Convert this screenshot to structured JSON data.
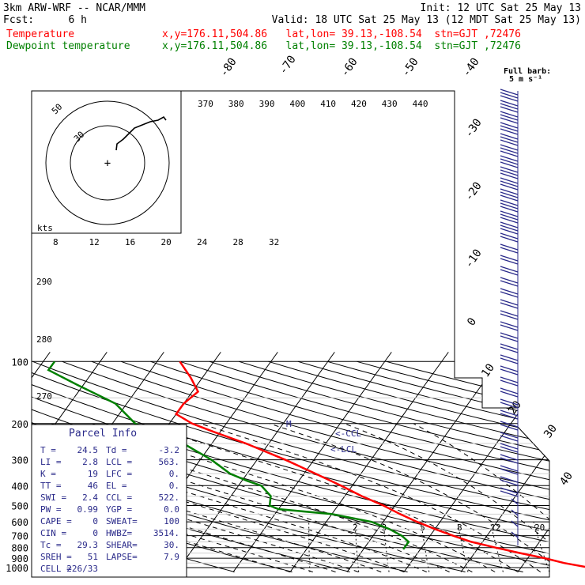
{
  "header": {
    "model": "3km ARW-WRF -- NCAR/MMM",
    "init": "Init: 12 UTC Sat 25 May 13",
    "fcst_label": "Fcst:",
    "fcst_value": "6 h",
    "valid": "Valid: 18 UTC Sat 25 May 13 (12 MDT Sat 25 May 13)",
    "temperature_label": "Temperature",
    "dewpoint_label": "Dewpoint temperature",
    "location_info": "x,y=176.11,504.86   lat,lon= 39.13,-108.54  stn=GJT ,72476",
    "temperature_color": "#ff0000",
    "dewpoint_color": "#008000"
  },
  "chart_data": {
    "type": "skew-t",
    "pressure_levels": [
      100,
      200,
      300,
      400,
      500,
      600,
      700,
      800,
      900,
      1000
    ],
    "isotherm_labels": [
      "-80",
      "-70",
      "-60",
      "-50",
      "-40",
      "-30",
      "-20",
      "-10",
      "0",
      "10",
      "20",
      "30",
      "40"
    ],
    "theta_labels_top": [
      "370",
      "380",
      "390",
      "400",
      "410",
      "420",
      "430",
      "440"
    ],
    "theta_labels_left": [
      "290",
      "280",
      "270"
    ],
    "hodograph": {
      "units_label": "kts",
      "ring_labels": [
        "50",
        "30"
      ],
      "axis_labels": [
        "8",
        "12",
        "16",
        "20",
        "24",
        "28",
        "32"
      ]
    },
    "mixing_ratio_labels": [
      "2",
      "3",
      "5",
      "8",
      "12",
      "20"
    ],
    "wind_barb_key": {
      "title": "Full barb:",
      "value": "5 m s⁻¹"
    },
    "markers": {
      "ccl": "<-CCL",
      "lcl": "<-LCL",
      "marker": "M"
    },
    "temperature_profile": [
      [
        1000,
        32
      ],
      [
        950,
        27
      ],
      [
        900,
        23
      ],
      [
        850,
        18
      ],
      [
        800,
        13
      ],
      [
        750,
        8
      ],
      [
        700,
        4
      ],
      [
        650,
        0
      ],
      [
        600,
        -4
      ],
      [
        550,
        -8
      ],
      [
        500,
        -12
      ],
      [
        450,
        -17
      ],
      [
        400,
        -22
      ],
      [
        350,
        -28
      ],
      [
        300,
        -35
      ],
      [
        250,
        -44
      ],
      [
        220,
        -51
      ],
      [
        200,
        -56
      ],
      [
        180,
        -60
      ],
      [
        160,
        -60
      ],
      [
        140,
        -59
      ],
      [
        120,
        -62
      ],
      [
        100,
        -66
      ]
    ],
    "dewpoint_profile": [
      [
        815,
        -3
      ],
      [
        750,
        -3
      ],
      [
        700,
        -5
      ],
      [
        650,
        -8
      ],
      [
        600,
        -12
      ],
      [
        550,
        -20
      ],
      [
        520,
        -30
      ],
      [
        500,
        -32
      ],
      [
        450,
        -33
      ],
      [
        400,
        -36
      ],
      [
        380,
        -39
      ],
      [
        350,
        -43
      ],
      [
        300,
        -48
      ],
      [
        250,
        -55
      ],
      [
        200,
        -66
      ],
      [
        160,
        -72
      ],
      [
        130,
        -81
      ],
      [
        110,
        -88
      ],
      [
        100,
        -88
      ]
    ],
    "parcel_info": {
      "title": "Parcel Info",
      "rows": [
        [
          "T  =",
          "24.5",
          "Td =",
          "-3.2"
        ],
        [
          "LI =",
          "2.8",
          "LCL =",
          "563."
        ],
        [
          "K  =",
          "19",
          "LFC =",
          "0."
        ],
        [
          "TT =",
          "46",
          "EL =",
          "0."
        ],
        [
          "SWI =",
          "2.4",
          "CCL =",
          "522."
        ],
        [
          "PW =",
          "0.99",
          "YGP =",
          "0.0"
        ],
        [
          "CAPE =",
          "0",
          "SWEAT=",
          "100"
        ],
        [
          "CIN =",
          "0",
          "HWBZ=",
          "3514."
        ],
        [
          "Tc =",
          "29.3",
          "SHEAR=",
          "30."
        ],
        [
          "SREH =",
          "51",
          "LAPSE=",
          "7.9"
        ],
        [
          "CELL =",
          "226/33",
          "",
          ""
        ]
      ]
    }
  }
}
